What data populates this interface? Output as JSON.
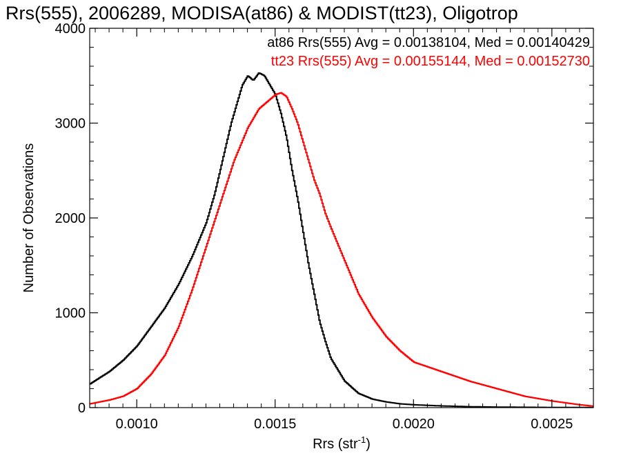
{
  "chart_data": {
    "type": "line",
    "title": "Rrs(555), 2006289, MODISA(at86) & MODIST(tt23), Oligotrop",
    "xlabel": "Rrs (str",
    "xlabel_sup": "-1",
    "xlabel_close": ")",
    "ylabel": "Number of Observations",
    "xlim": [
      0.00083,
      0.00265
    ],
    "ylim": [
      0,
      4000
    ],
    "x_ticks": [
      0.001,
      0.0015,
      0.002,
      0.0025
    ],
    "x_tick_labels": [
      "0.0010",
      "0.0015",
      "0.0020",
      "0.0025"
    ],
    "y_ticks": [
      0,
      1000,
      2000,
      3000,
      4000
    ],
    "y_tick_labels": [
      "0",
      "1000",
      "2000",
      "3000",
      "4000"
    ],
    "grid": false,
    "legend_position": "top-right",
    "series": [
      {
        "name": "at86",
        "legend_text": "at86 Rrs(555) Avg = 0.00138104, Med = 0.00140429",
        "color": "#000000",
        "x": [
          0.00083,
          0.0009,
          0.00095,
          0.001,
          0.00105,
          0.0011,
          0.00115,
          0.0012,
          0.00125,
          0.00128,
          0.0013,
          0.00132,
          0.00134,
          0.00136,
          0.00138,
          0.0014,
          0.00142,
          0.00144,
          0.00146,
          0.00148,
          0.0015,
          0.00152,
          0.00154,
          0.00156,
          0.00158,
          0.0016,
          0.00162,
          0.00164,
          0.00166,
          0.00168,
          0.0017,
          0.00175,
          0.0018,
          0.00185,
          0.0019,
          0.00195,
          0.002,
          0.0021,
          0.0022,
          0.0023,
          0.0024,
          0.0025,
          0.00265
        ],
        "y": [
          250,
          380,
          500,
          650,
          850,
          1050,
          1300,
          1600,
          1950,
          2250,
          2500,
          2750,
          3000,
          3200,
          3400,
          3500,
          3450,
          3530,
          3500,
          3400,
          3300,
          3100,
          2850,
          2500,
          2200,
          1850,
          1500,
          1200,
          900,
          700,
          520,
          280,
          150,
          90,
          60,
          40,
          30,
          18,
          10,
          6,
          4,
          2,
          1
        ]
      },
      {
        "name": "tt23",
        "legend_text": "tt23 Rrs(555) Avg = 0.00155144, Med = 0.00152730",
        "color": "#ff0000",
        "x": [
          0.00083,
          0.0009,
          0.00095,
          0.001,
          0.00105,
          0.0011,
          0.00115,
          0.0012,
          0.00125,
          0.0013,
          0.00135,
          0.0014,
          0.00144,
          0.00146,
          0.00148,
          0.0015,
          0.00152,
          0.00154,
          0.00156,
          0.00158,
          0.0016,
          0.00162,
          0.00164,
          0.00166,
          0.00168,
          0.0017,
          0.00175,
          0.0018,
          0.00185,
          0.0019,
          0.00195,
          0.002,
          0.0021,
          0.0022,
          0.0023,
          0.0024,
          0.0025,
          0.0026,
          0.00265
        ],
        "y": [
          40,
          80,
          120,
          200,
          350,
          550,
          850,
          1250,
          1700,
          2150,
          2600,
          2950,
          3150,
          3200,
          3250,
          3300,
          3320,
          3280,
          3150,
          3000,
          2800,
          2600,
          2400,
          2250,
          2050,
          1900,
          1550,
          1200,
          950,
          750,
          600,
          480,
          380,
          280,
          200,
          120,
          70,
          30,
          15
        ]
      }
    ]
  }
}
